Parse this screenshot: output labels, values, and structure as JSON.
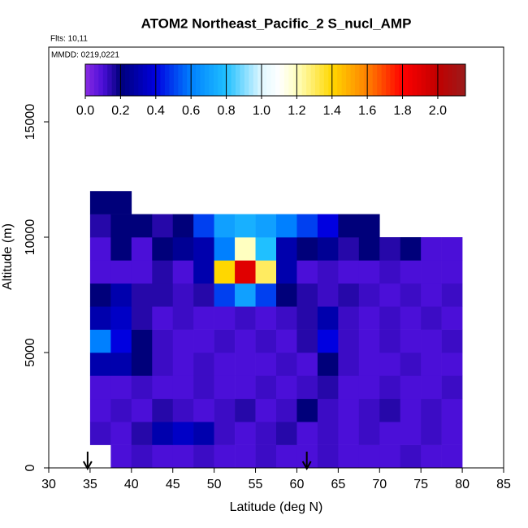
{
  "chart_data": {
    "type": "heatmap",
    "title": "ATOM2 Northeast_Pacific_2 S_nucl_AMP",
    "subtitle": "Flts: 10,11",
    "annotation": "MMDD: 0219,0221",
    "x_label": "Latitude (deg N)",
    "y_label": "Altitude (m)",
    "xlim": [
      30,
      85
    ],
    "xticks": [
      30,
      35,
      40,
      45,
      50,
      55,
      60,
      65,
      70,
      75,
      80,
      85
    ],
    "ylim": [
      0,
      18240
    ],
    "yticks": [
      0,
      5000,
      10000,
      15000
    ],
    "x_edges": [
      35,
      37.5,
      40,
      42.5,
      45,
      47.5,
      50,
      52.5,
      55,
      57.5,
      60,
      62.5,
      65,
      67.5,
      70,
      72.5,
      75,
      77.5,
      80
    ],
    "y_edges": [
      0,
      1000,
      2000,
      3000,
      4000,
      5000,
      6000,
      7000,
      8000,
      9000,
      10000,
      11000,
      12000
    ],
    "values": [
      [
        null,
        0.1,
        0.12,
        0.1,
        0.1,
        0.12,
        0.1,
        0.1,
        0.12,
        0.1,
        0.1,
        0.12,
        0.1,
        0.1,
        0.1,
        0.12,
        0.1,
        0.1
      ],
      [
        0.12,
        0.1,
        0.15,
        0.3,
        0.35,
        0.3,
        0.12,
        0.1,
        0.12,
        0.15,
        0.1,
        0.12,
        0.1,
        0.12,
        0.1,
        0.1,
        0.12,
        0.1
      ],
      [
        0.1,
        0.12,
        0.1,
        0.15,
        0.12,
        0.1,
        0.12,
        0.15,
        0.1,
        0.12,
        0.2,
        0.12,
        0.1,
        0.12,
        0.15,
        0.1,
        0.12,
        0.1
      ],
      [
        0.1,
        0.1,
        0.12,
        0.1,
        0.1,
        0.12,
        0.1,
        0.1,
        0.12,
        0.1,
        0.12,
        0.15,
        0.1,
        0.1,
        0.12,
        0.1,
        0.1,
        0.12
      ],
      [
        0.3,
        0.3,
        0.2,
        0.12,
        0.1,
        0.12,
        0.1,
        0.1,
        0.1,
        0.12,
        0.1,
        0.2,
        0.12,
        0.1,
        0.1,
        0.12,
        0.1,
        0.1
      ],
      [
        0.6,
        0.4,
        0.2,
        0.12,
        0.1,
        0.1,
        0.12,
        0.1,
        0.12,
        0.1,
        0.15,
        0.4,
        0.12,
        0.1,
        0.12,
        0.1,
        0.1,
        0.12
      ],
      [
        0.3,
        0.35,
        0.15,
        0.1,
        0.12,
        0.1,
        0.1,
        0.12,
        0.1,
        0.12,
        0.15,
        0.3,
        0.12,
        0.1,
        0.12,
        0.1,
        0.12,
        0.1
      ],
      [
        0.2,
        0.3,
        0.15,
        0.15,
        0.12,
        0.15,
        0.5,
        0.7,
        0.5,
        0.2,
        0.15,
        0.12,
        0.15,
        0.12,
        0.1,
        0.12,
        0.1,
        0.12
      ],
      [
        0.1,
        0.1,
        0.1,
        0.15,
        0.1,
        0.3,
        1.4,
        1.9,
        1.3,
        0.3,
        0.1,
        0.12,
        0.1,
        0.1,
        0.12,
        0.1,
        0.1,
        0.1
      ],
      [
        0.1,
        0.2,
        0.1,
        0.2,
        0.25,
        0.3,
        0.6,
        1.2,
        0.8,
        0.3,
        0.2,
        0.25,
        0.15,
        0.2,
        0.15,
        0.2,
        0.1,
        0.1
      ],
      [
        0.15,
        0.2,
        0.2,
        0.15,
        0.2,
        0.5,
        0.7,
        0.75,
        0.7,
        0.6,
        0.5,
        0.4,
        0.2,
        0.2,
        null,
        null,
        null,
        null
      ],
      [
        0.2,
        0.2,
        null,
        null,
        null,
        null,
        null,
        null,
        null,
        null,
        null,
        null,
        null,
        null,
        null,
        null,
        null,
        null
      ]
    ],
    "zlim": [
      0,
      2.157
    ],
    "colorbar_ticks": [
      {
        "value": 0,
        "label": "0.0"
      },
      0.2,
      0.4,
      0.6,
      0.8,
      {
        "value": 1,
        "label": "1.0"
      },
      1.2,
      1.4,
      1.6,
      1.8,
      {
        "value": 2,
        "label": "2.0"
      }
    ],
    "colormap": [
      {
        "value": 0,
        "color": "#8a2be2"
      },
      {
        "value": 0.1,
        "color": "#4b0fd8"
      },
      {
        "value": 0.2,
        "color": "#00007a"
      },
      {
        "value": 0.4,
        "color": "#0000e0"
      },
      {
        "value": 0.6,
        "color": "#0080ff"
      },
      {
        "value": 0.8,
        "color": "#20c0ff"
      },
      {
        "value": 1.0,
        "color": "#e0f8ff"
      },
      {
        "value": 1.1,
        "color": "#ffffff"
      },
      {
        "value": 1.2,
        "color": "#ffffc0"
      },
      {
        "value": 1.4,
        "color": "#ffd700"
      },
      {
        "value": 1.6,
        "color": "#ff8000"
      },
      {
        "value": 1.8,
        "color": "#ff0000"
      },
      {
        "value": 2.0,
        "color": "#c00000"
      },
      {
        "value": 2.157,
        "color": "#9b1b1b"
      }
    ],
    "markers": [
      34.7,
      61.2
    ]
  }
}
